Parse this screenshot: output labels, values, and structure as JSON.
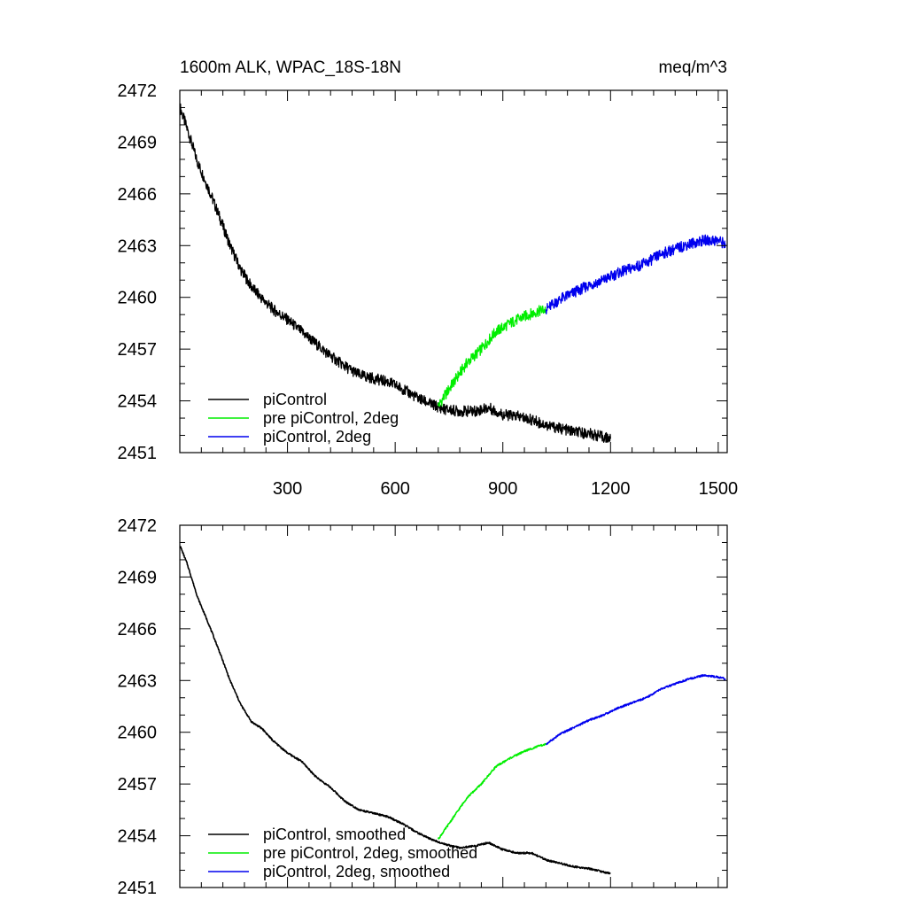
{
  "chart_data": [
    {
      "type": "line",
      "title": "1600m ALK, WPAC_18S-18N",
      "units": "meq/m^3",
      "xlim": [
        0,
        1525
      ],
      "ylim": [
        2451,
        2472
      ],
      "xticks": [
        300,
        600,
        900,
        1200,
        1500
      ],
      "yticks": [
        2451,
        2454,
        2457,
        2460,
        2463,
        2466,
        2469,
        2472
      ],
      "xtick_labels": [
        "300",
        "600",
        "900",
        "1200",
        "1500"
      ],
      "ytick_labels": [
        "2451",
        "2454",
        "2457",
        "2460",
        "2463",
        "2466",
        "2469",
        "2472"
      ],
      "legend_position": "bottom-left",
      "smoothed": false,
      "series": [
        {
          "name": "piControl",
          "color": "#000000",
          "x": [
            1,
            20,
            50,
            80,
            110,
            140,
            170,
            200,
            230,
            260,
            300,
            340,
            380,
            420,
            460,
            500,
            540,
            580,
            620,
            660,
            700,
            740,
            780,
            820,
            860,
            900,
            940,
            980,
            1020,
            1060,
            1100,
            1140,
            1180,
            1200
          ],
          "y": [
            2471.0,
            2469.8,
            2467.8,
            2466.3,
            2464.7,
            2463.0,
            2461.6,
            2460.6,
            2459.9,
            2459.3,
            2458.7,
            2458.0,
            2457.3,
            2456.6,
            2456.0,
            2455.5,
            2455.3,
            2455.1,
            2454.7,
            2454.2,
            2453.8,
            2453.5,
            2453.4,
            2453.4,
            2453.6,
            2453.2,
            2453.1,
            2452.9,
            2452.6,
            2452.4,
            2452.2,
            2452.1,
            2451.9,
            2451.8
          ]
        },
        {
          "name": "pre piControl, 2deg",
          "color": "#00ee00",
          "x": [
            720,
            760,
            800,
            840,
            880,
            920,
            960,
            1000,
            1020
          ],
          "y": [
            2453.7,
            2455.0,
            2456.2,
            2457.0,
            2458.0,
            2458.5,
            2458.9,
            2459.2,
            2459.3
          ]
        },
        {
          "name": "piControl, 2deg",
          "color": "#0000ee",
          "x": [
            1020,
            1060,
            1100,
            1140,
            1180,
            1220,
            1260,
            1300,
            1340,
            1380,
            1420,
            1460,
            1500,
            1520
          ],
          "y": [
            2459.3,
            2459.9,
            2460.3,
            2460.7,
            2461.0,
            2461.4,
            2461.7,
            2462.0,
            2462.5,
            2462.8,
            2463.1,
            2463.3,
            2463.3,
            2463.1
          ]
        }
      ]
    },
    {
      "type": "line",
      "title": "",
      "xlim": [
        0,
        1525
      ],
      "ylim": [
        2451,
        2472
      ],
      "xticks": [
        300,
        600,
        900,
        1200,
        1500
      ],
      "yticks": [
        2451,
        2454,
        2457,
        2460,
        2463,
        2466,
        2469,
        2472
      ],
      "ytick_labels": [
        "2451",
        "2454",
        "2457",
        "2460",
        "2463",
        "2466",
        "2469",
        "2472"
      ],
      "legend_position": "bottom-left",
      "smoothed": true,
      "series": [
        {
          "name": "piControl, smoothed",
          "color": "#000000",
          "x": [
            1,
            20,
            50,
            80,
            110,
            140,
            170,
            200,
            230,
            260,
            300,
            340,
            380,
            420,
            460,
            500,
            540,
            580,
            620,
            660,
            700,
            740,
            780,
            820,
            860,
            900,
            940,
            980,
            1020,
            1060,
            1100,
            1140,
            1180,
            1200
          ],
          "y": [
            2470.8,
            2469.8,
            2467.8,
            2466.3,
            2464.7,
            2463.0,
            2461.6,
            2460.6,
            2460.2,
            2459.5,
            2458.8,
            2458.3,
            2457.4,
            2456.8,
            2456.0,
            2455.5,
            2455.3,
            2455.1,
            2454.7,
            2454.2,
            2453.8,
            2453.5,
            2453.3,
            2453.4,
            2453.6,
            2453.2,
            2453.0,
            2453.0,
            2452.6,
            2452.4,
            2452.2,
            2452.1,
            2451.9,
            2451.8
          ]
        },
        {
          "name": "pre piControl, 2deg, smoothed",
          "color": "#00ee00",
          "x": [
            720,
            760,
            800,
            840,
            880,
            920,
            960,
            1000,
            1020
          ],
          "y": [
            2453.8,
            2455.0,
            2456.2,
            2457.0,
            2458.0,
            2458.5,
            2458.9,
            2459.2,
            2459.3
          ]
        },
        {
          "name": "piControl, 2deg, smoothed",
          "color": "#0000ee",
          "x": [
            1020,
            1060,
            1100,
            1140,
            1180,
            1220,
            1260,
            1300,
            1340,
            1380,
            1420,
            1460,
            1500,
            1520
          ],
          "y": [
            2459.3,
            2459.9,
            2460.3,
            2460.7,
            2461.0,
            2461.4,
            2461.7,
            2462.0,
            2462.5,
            2462.8,
            2463.1,
            2463.3,
            2463.2,
            2463.1
          ]
        }
      ]
    }
  ]
}
